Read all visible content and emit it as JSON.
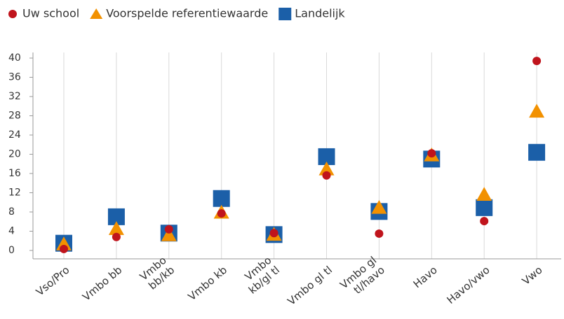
{
  "chart_data": {
    "type": "dot",
    "categories": [
      [
        "Vso/Pro"
      ],
      [
        "Vmbo bb"
      ],
      [
        "Vmbo",
        "bb/kb"
      ],
      [
        "Vmbo kb"
      ],
      [
        "Vmbo",
        "kb/gl tl"
      ],
      [
        "Vmbo gl tl"
      ],
      [
        "Vmbo gl",
        "tl/havo"
      ],
      [
        "Havo"
      ],
      [
        "Havo/vwo"
      ],
      [
        "Vwo"
      ]
    ],
    "series": [
      {
        "name": "Uw school",
        "color": "#c0141c",
        "marker": "circle",
        "values": [
          0.3,
          2.8,
          4.4,
          7.7,
          3.6,
          15.6,
          3.5,
          20.2,
          6.1,
          39.4
        ]
      },
      {
        "name": "Voorspelde referentiewaarde",
        "color": "#f29100",
        "marker": "triangle",
        "values": [
          1.3,
          4.5,
          3.2,
          7.9,
          3.3,
          16.9,
          8.9,
          19.8,
          11.6,
          28.9
        ]
      },
      {
        "name": "Landelijk",
        "color": "#1b5fa8",
        "marker": "square",
        "values": [
          1.5,
          7.0,
          3.6,
          10.8,
          3.3,
          19.5,
          8.1,
          19.0,
          8.9,
          20.4
        ]
      }
    ],
    "ylim": [
      0,
      40
    ],
    "yticks": [
      0,
      4,
      8,
      12,
      16,
      20,
      24,
      28,
      32,
      36,
      40
    ],
    "grid": true
  }
}
